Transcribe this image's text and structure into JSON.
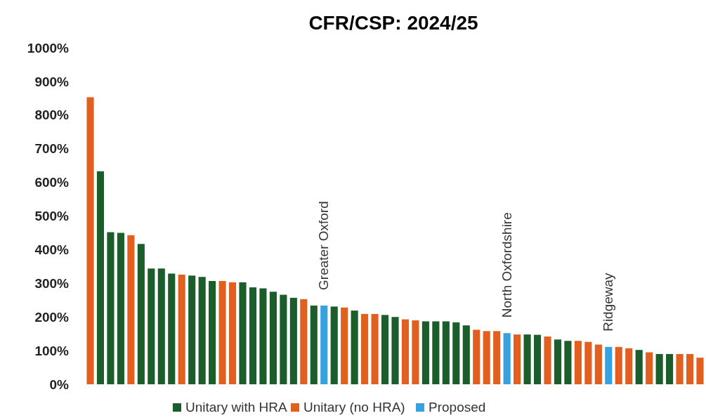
{
  "chart_data": {
    "type": "bar",
    "title": "CFR/CSP: 2024/25",
    "categories": [
      null,
      null,
      null,
      null,
      null,
      null,
      null,
      null,
      null,
      null,
      null,
      null,
      null,
      null,
      null,
      null,
      null,
      null,
      null,
      null,
      null,
      null,
      null,
      "Greater Oxford",
      null,
      null,
      null,
      null,
      null,
      null,
      null,
      null,
      null,
      null,
      null,
      null,
      null,
      null,
      null,
      null,
      null,
      "North Oxfordshire",
      null,
      null,
      null,
      null,
      null,
      null,
      null,
      null,
      null,
      "Ridgeway",
      null,
      null,
      null,
      null,
      null,
      null,
      null,
      null,
      null
    ],
    "series": [
      {
        "name": "Unitary with HRA",
        "color": "#1b5e2b",
        "values": [
          null,
          633,
          452,
          450,
          null,
          417,
          344,
          344,
          329,
          null,
          323,
          319,
          307,
          null,
          null,
          303,
          288,
          285,
          275,
          266,
          257,
          null,
          234,
          null,
          231,
          null,
          219,
          null,
          null,
          206,
          200,
          null,
          null,
          187,
          187,
          187,
          184,
          175,
          null,
          null,
          null,
          null,
          null,
          148,
          147,
          null,
          133,
          129,
          null,
          null,
          null,
          null,
          null,
          null,
          102,
          null,
          90,
          90,
          null,
          null,
          null
        ]
      },
      {
        "name": "Unitary (no HRA)",
        "color": "#e1601f",
        "values": [
          853,
          null,
          null,
          null,
          443,
          null,
          null,
          null,
          null,
          326,
          null,
          null,
          null,
          307,
          303,
          null,
          null,
          null,
          null,
          null,
          null,
          253,
          null,
          null,
          null,
          228,
          null,
          209,
          209,
          null,
          null,
          193,
          190,
          null,
          null,
          null,
          null,
          null,
          162,
          158,
          158,
          null,
          148,
          null,
          null,
          142,
          null,
          null,
          129,
          126,
          118,
          null,
          111,
          107,
          null,
          95,
          null,
          null,
          90,
          90,
          79
        ]
      },
      {
        "name": "Proposed",
        "color": "#36a3e0",
        "values": [
          null,
          null,
          null,
          null,
          null,
          null,
          null,
          null,
          null,
          null,
          null,
          null,
          null,
          null,
          null,
          null,
          null,
          null,
          null,
          null,
          null,
          null,
          null,
          234,
          null,
          null,
          null,
          null,
          null,
          null,
          null,
          null,
          null,
          null,
          null,
          null,
          null,
          null,
          null,
          null,
          null,
          152,
          null,
          null,
          null,
          null,
          null,
          null,
          null,
          null,
          null,
          111,
          null,
          null,
          null,
          null,
          null,
          null,
          null,
          null,
          null
        ]
      }
    ],
    "ylim": [
      0,
      1000
    ],
    "yticks": [
      {
        "value": 0,
        "label": "0%"
      },
      {
        "value": 100,
        "label": "100%"
      },
      {
        "value": 200,
        "label": "200%"
      },
      {
        "value": 300,
        "label": "300%"
      },
      {
        "value": 400,
        "label": "400%"
      },
      {
        "value": 500,
        "label": "500%"
      },
      {
        "value": 600,
        "label": "600%"
      },
      {
        "value": 700,
        "label": "700%"
      },
      {
        "value": 800,
        "label": "800%"
      },
      {
        "value": 900,
        "label": "900%"
      },
      {
        "value": 1000,
        "label": "1000%"
      }
    ],
    "stacked": true,
    "grid": false,
    "legend": "bottom"
  }
}
